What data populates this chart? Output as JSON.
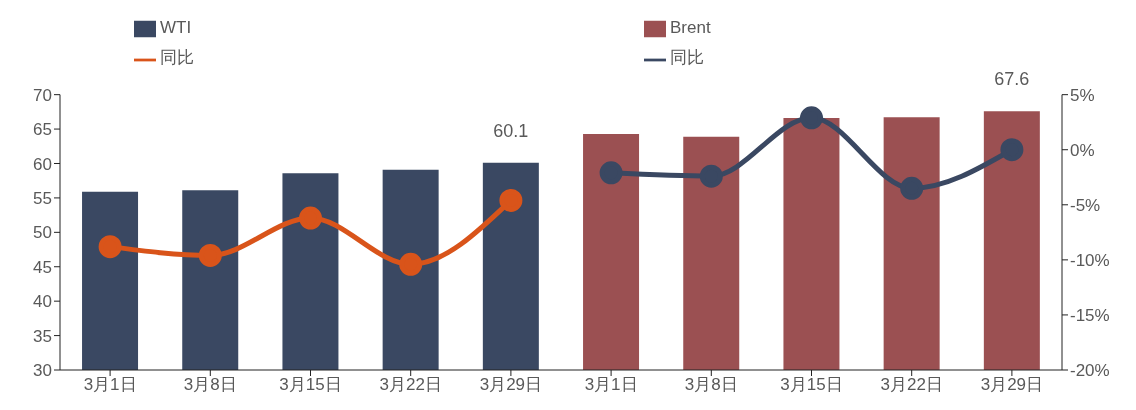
{
  "chart_data": {
    "type": "bar",
    "categories": [
      "3月1日",
      "3月8日",
      "3月15日",
      "3月22日",
      "3月29日",
      "3月1日",
      "3月8日",
      "3月15日",
      "3月22日",
      "3月29日"
    ],
    "series": [
      {
        "name": "WTI",
        "color": "#3a4862",
        "values": [
          55.9,
          56.1,
          58.6,
          59.1,
          60.1,
          null,
          null,
          null,
          null,
          null
        ],
        "value_labels": [
          null,
          null,
          null,
          null,
          "60.1",
          null,
          null,
          null,
          null,
          null
        ]
      },
      {
        "name": "同比",
        "type": "line",
        "axis": "y2",
        "color": "#d9541a",
        "values": [
          -8.8,
          -9.6,
          -6.2,
          -10.4,
          -4.6,
          null,
          null,
          null,
          null,
          null
        ]
      },
      {
        "name": "Brent",
        "color": "#9b5052",
        "values": [
          null,
          null,
          null,
          null,
          null,
          64.3,
          63.9,
          66.6,
          66.7,
          67.6
        ],
        "value_labels": [
          null,
          null,
          null,
          null,
          null,
          null,
          null,
          null,
          null,
          "67.6"
        ]
      },
      {
        "name": "同比",
        "type": "line",
        "axis": "y2",
        "color": "#3a4862",
        "values": [
          null,
          null,
          null,
          null,
          null,
          -2.1,
          -2.4,
          2.9,
          -3.5,
          0.0
        ]
      }
    ],
    "ylim": [
      30,
      70
    ],
    "yticks": [
      30,
      35,
      40,
      45,
      50,
      55,
      60,
      65,
      70
    ],
    "y2lim": [
      -20,
      5
    ],
    "y2ticks": [
      {
        "value": -20,
        "label": "-20%"
      },
      {
        "value": -15,
        "label": "-15%"
      },
      {
        "value": -10,
        "label": "-10%"
      },
      {
        "value": -5,
        "label": "-5%"
      },
      {
        "value": 0,
        "label": "0%"
      },
      {
        "value": 5,
        "label": "5%"
      }
    ],
    "marker": "circle",
    "legend": "top",
    "grid": false
  }
}
